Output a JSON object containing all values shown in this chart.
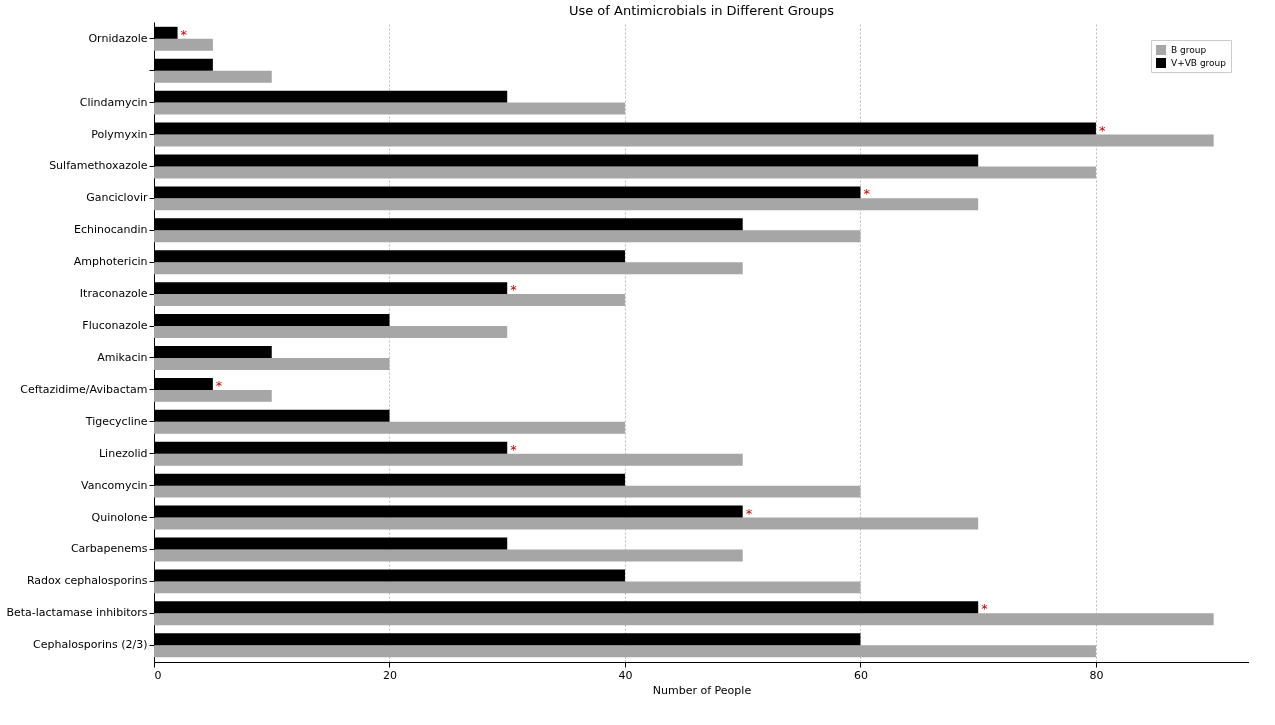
{
  "chart_data": {
    "type": "bar",
    "orientation": "horizontal",
    "title": "Use of Antimicrobials in Different Groups",
    "xlabel": "Number of People",
    "categories": [
      "Ornidazole",
      null,
      "Clindamycin",
      "Polymyxin",
      "Sulfamethoxazole",
      "Ganciclovir",
      "Echinocandin",
      "Amphotericin",
      "Itraconazole",
      "Fluconazole",
      "Amikacin",
      "Ceftazidime/Avibactam",
      "Tigecycline",
      "Linezolid",
      "Vancomycin",
      "Quinolone",
      "Carbapenems",
      "Radox cephalosporins",
      "Beta-lactamase inhibitors",
      "Cephalosporins (2/3)"
    ],
    "series": [
      {
        "name": "B group",
        "color": "#a6a6a6",
        "values": [
          5,
          10,
          40,
          90,
          80,
          70,
          60,
          50,
          40,
          30,
          20,
          10,
          40,
          50,
          60,
          70,
          50,
          60,
          90,
          80
        ]
      },
      {
        "name": "V+VB group",
        "color": "#000000",
        "values": [
          2,
          5,
          30,
          80,
          70,
          60,
          50,
          40,
          30,
          20,
          10,
          5,
          20,
          30,
          40,
          50,
          30,
          40,
          70,
          60
        ]
      }
    ],
    "annotations": [
      {
        "text": "*",
        "x": 2,
        "y": "Ornidazole"
      },
      {
        "text": "*",
        "x": 80,
        "y": "Polymyxin"
      },
      {
        "text": "*",
        "x": 60,
        "y": "Ganciclovir"
      },
      {
        "text": "*",
        "x": 30,
        "y": "Itraconazole"
      },
      {
        "text": "*",
        "x": 5,
        "y": "Ceftazidime/Avibactam"
      },
      {
        "text": "*",
        "x": 30,
        "y": "Linezolid"
      },
      {
        "text": "*",
        "x": 50,
        "y": "Quinolone"
      },
      {
        "text": "*",
        "x": 70,
        "y": "Beta-lactamase inhibitors"
      }
    ],
    "xlim": [
      0,
      93
    ],
    "xticks": [
      0,
      20,
      40,
      60,
      80
    ],
    "grid": "x",
    "legend": "top right"
  }
}
